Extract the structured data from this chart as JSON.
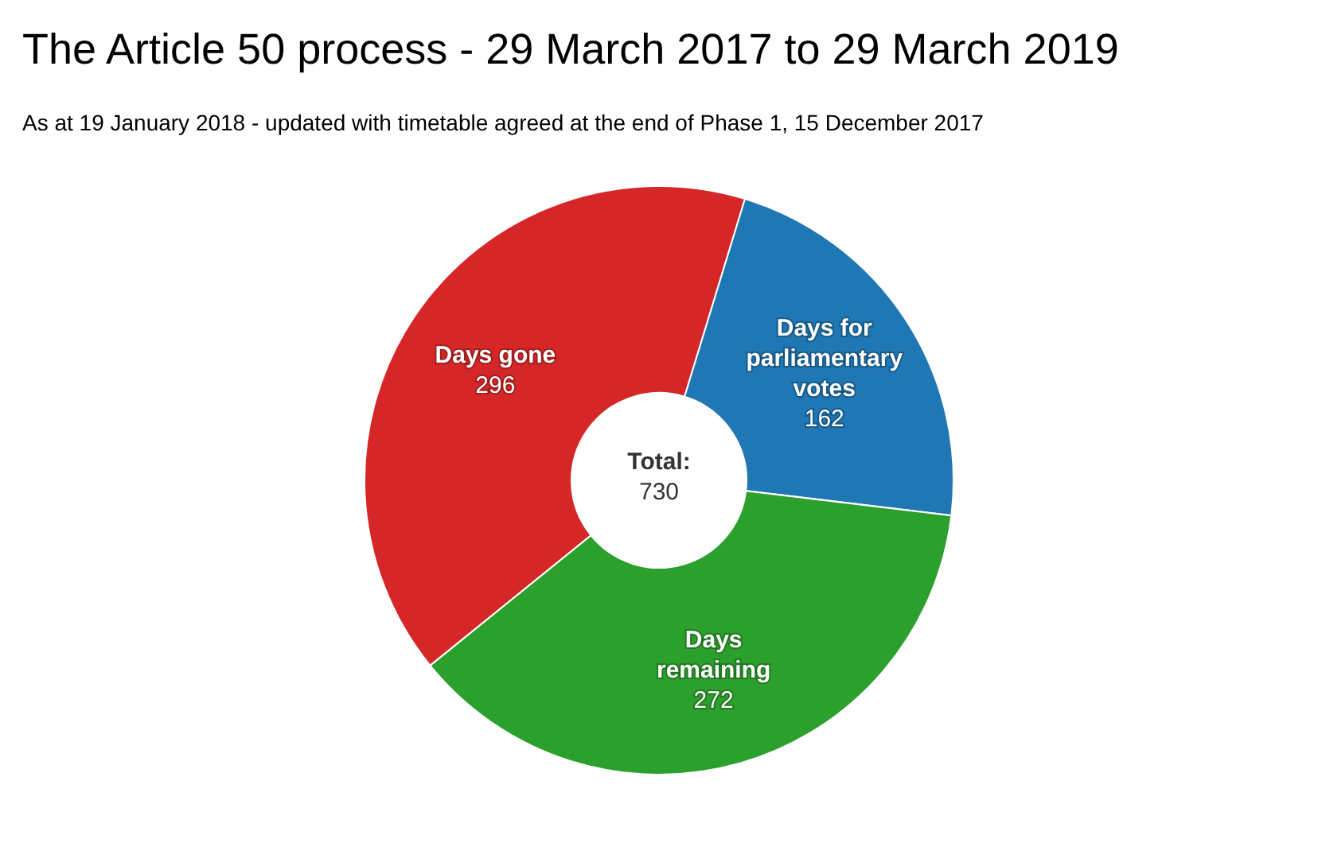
{
  "chart_data": {
    "type": "donut",
    "title": "The Article 50 process - 29 March 2017 to 29 March 2019",
    "subtitle": "As at 19 January 2018 - updated with timetable agreed at the end of Phase 1, 15 December 2017",
    "categories": [
      "Days gone",
      "Days for parliamentary votes",
      "Days remaining"
    ],
    "values": [
      296,
      162,
      272
    ],
    "colors": [
      "#d62728",
      "#1f77b4",
      "#2ca02c"
    ],
    "data_labels": true,
    "annotations": [
      "Total:",
      "730"
    ]
  }
}
